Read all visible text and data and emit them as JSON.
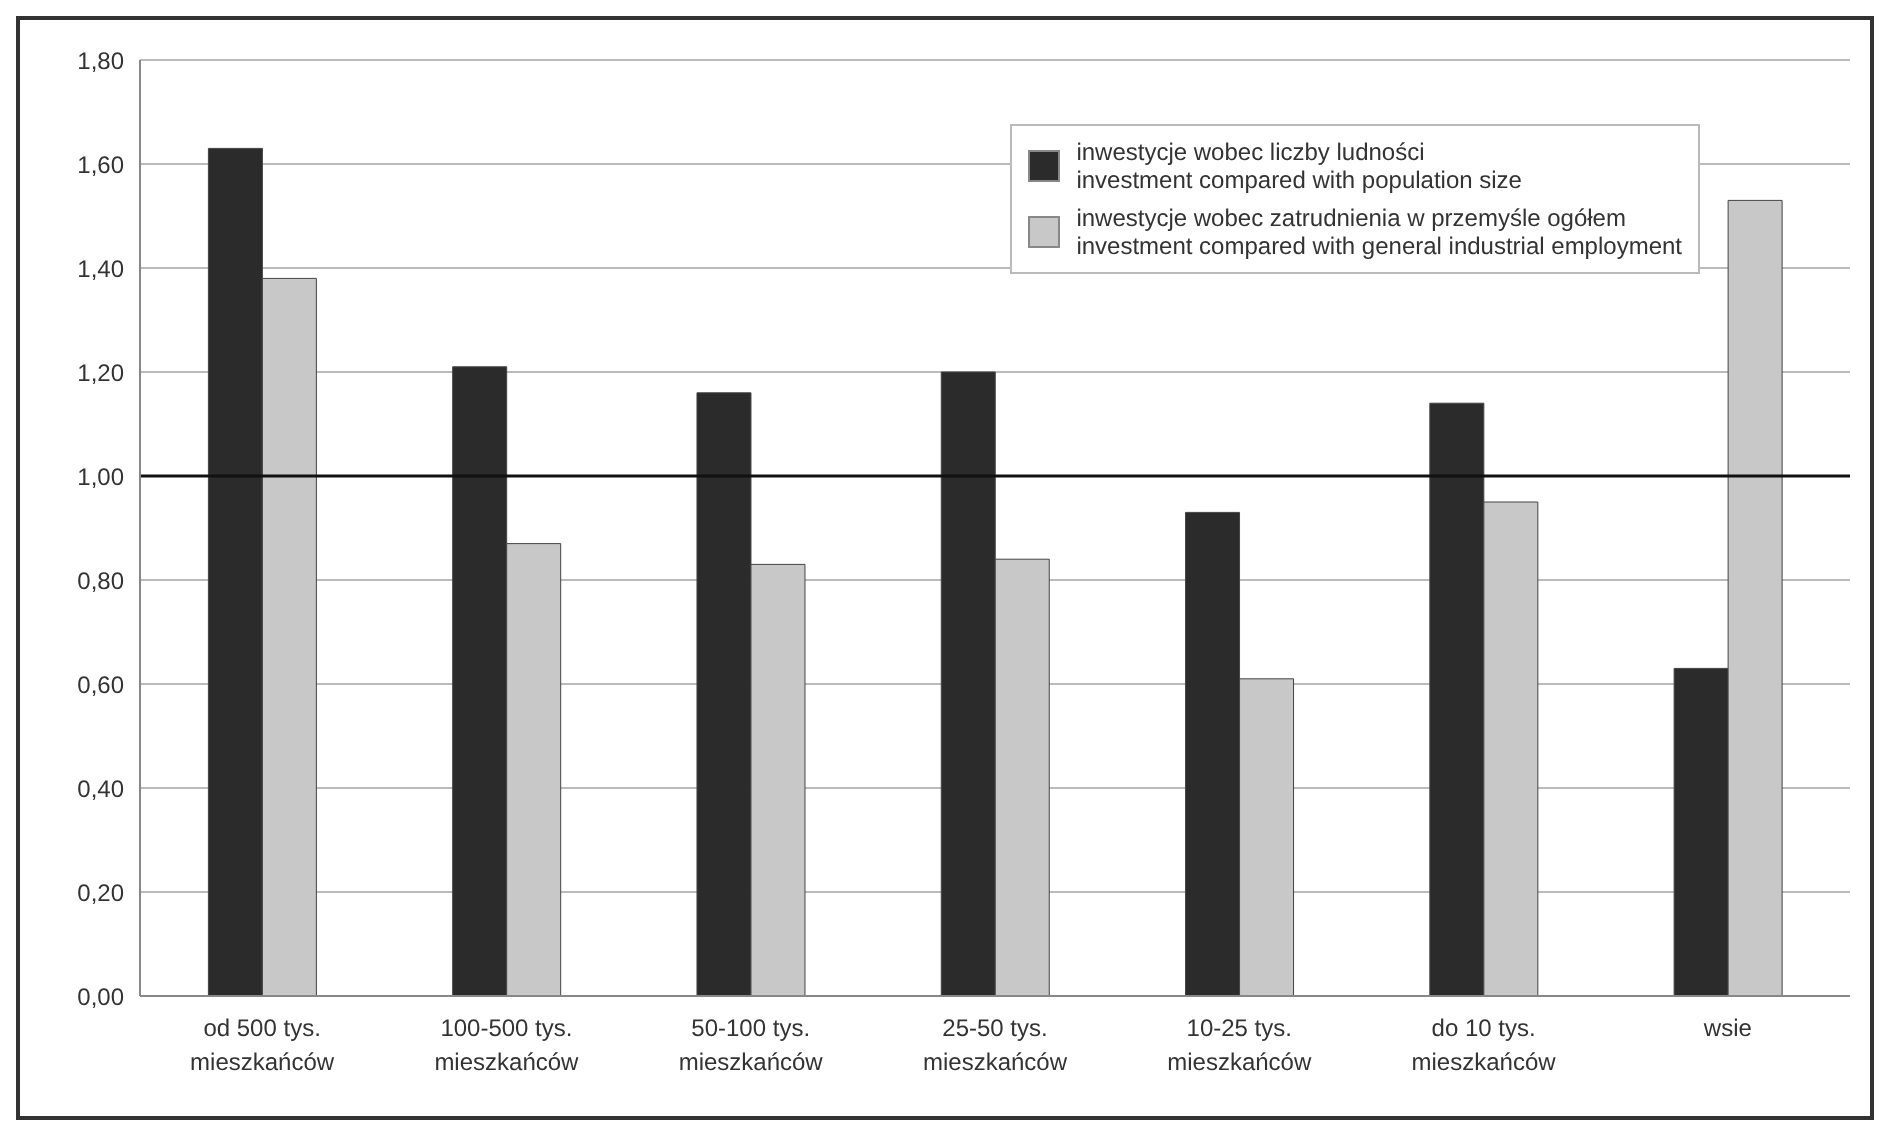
{
  "chart_data": {
    "type": "bar",
    "categories": [
      "od 500 tys.\nmieszkańców",
      "100-500 tys.\nmieszkańców",
      "50-100 tys.\nmieszkańców",
      "25-50 tys.\nmieszkańców",
      "10-25 tys.\nmieszkańców",
      "do 10 tys.\nmieszkańców",
      "wsie"
    ],
    "series": [
      {
        "name": "inwestycje wobec liczby ludności\ninvestment compared with population size",
        "color": "#2b2b2b",
        "values": [
          1.63,
          1.21,
          1.16,
          1.2,
          0.93,
          1.14,
          0.63
        ]
      },
      {
        "name": "inwestycje wobec zatrudnienia w przemyśle ogółem\ninvestment compared with general industrial employment",
        "color": "#c8c8c8",
        "values": [
          1.38,
          0.87,
          0.83,
          0.84,
          0.61,
          0.95,
          1.53
        ]
      }
    ],
    "ylim": [
      0,
      1.8
    ],
    "yticks": [
      {
        "value": 0,
        "label": "0,00"
      },
      {
        "value": 0.2,
        "label": "0,20"
      },
      {
        "value": 0.4,
        "label": "0,40"
      },
      {
        "value": 0.6,
        "label": "0,60"
      },
      {
        "value": 0.8,
        "label": "0,80"
      },
      {
        "value": 1.0,
        "label": "1,00"
      },
      {
        "value": 1.2,
        "label": "1,20"
      },
      {
        "value": 1.4,
        "label": "1,40"
      },
      {
        "value": 1.6,
        "label": "1,60"
      },
      {
        "value": 1.8,
        "label": "1,80"
      }
    ],
    "ref_lines": [
      {
        "axis": "y",
        "value": 1.0,
        "color": "#111111"
      }
    ],
    "grid": "y",
    "legend": "top right"
  }
}
